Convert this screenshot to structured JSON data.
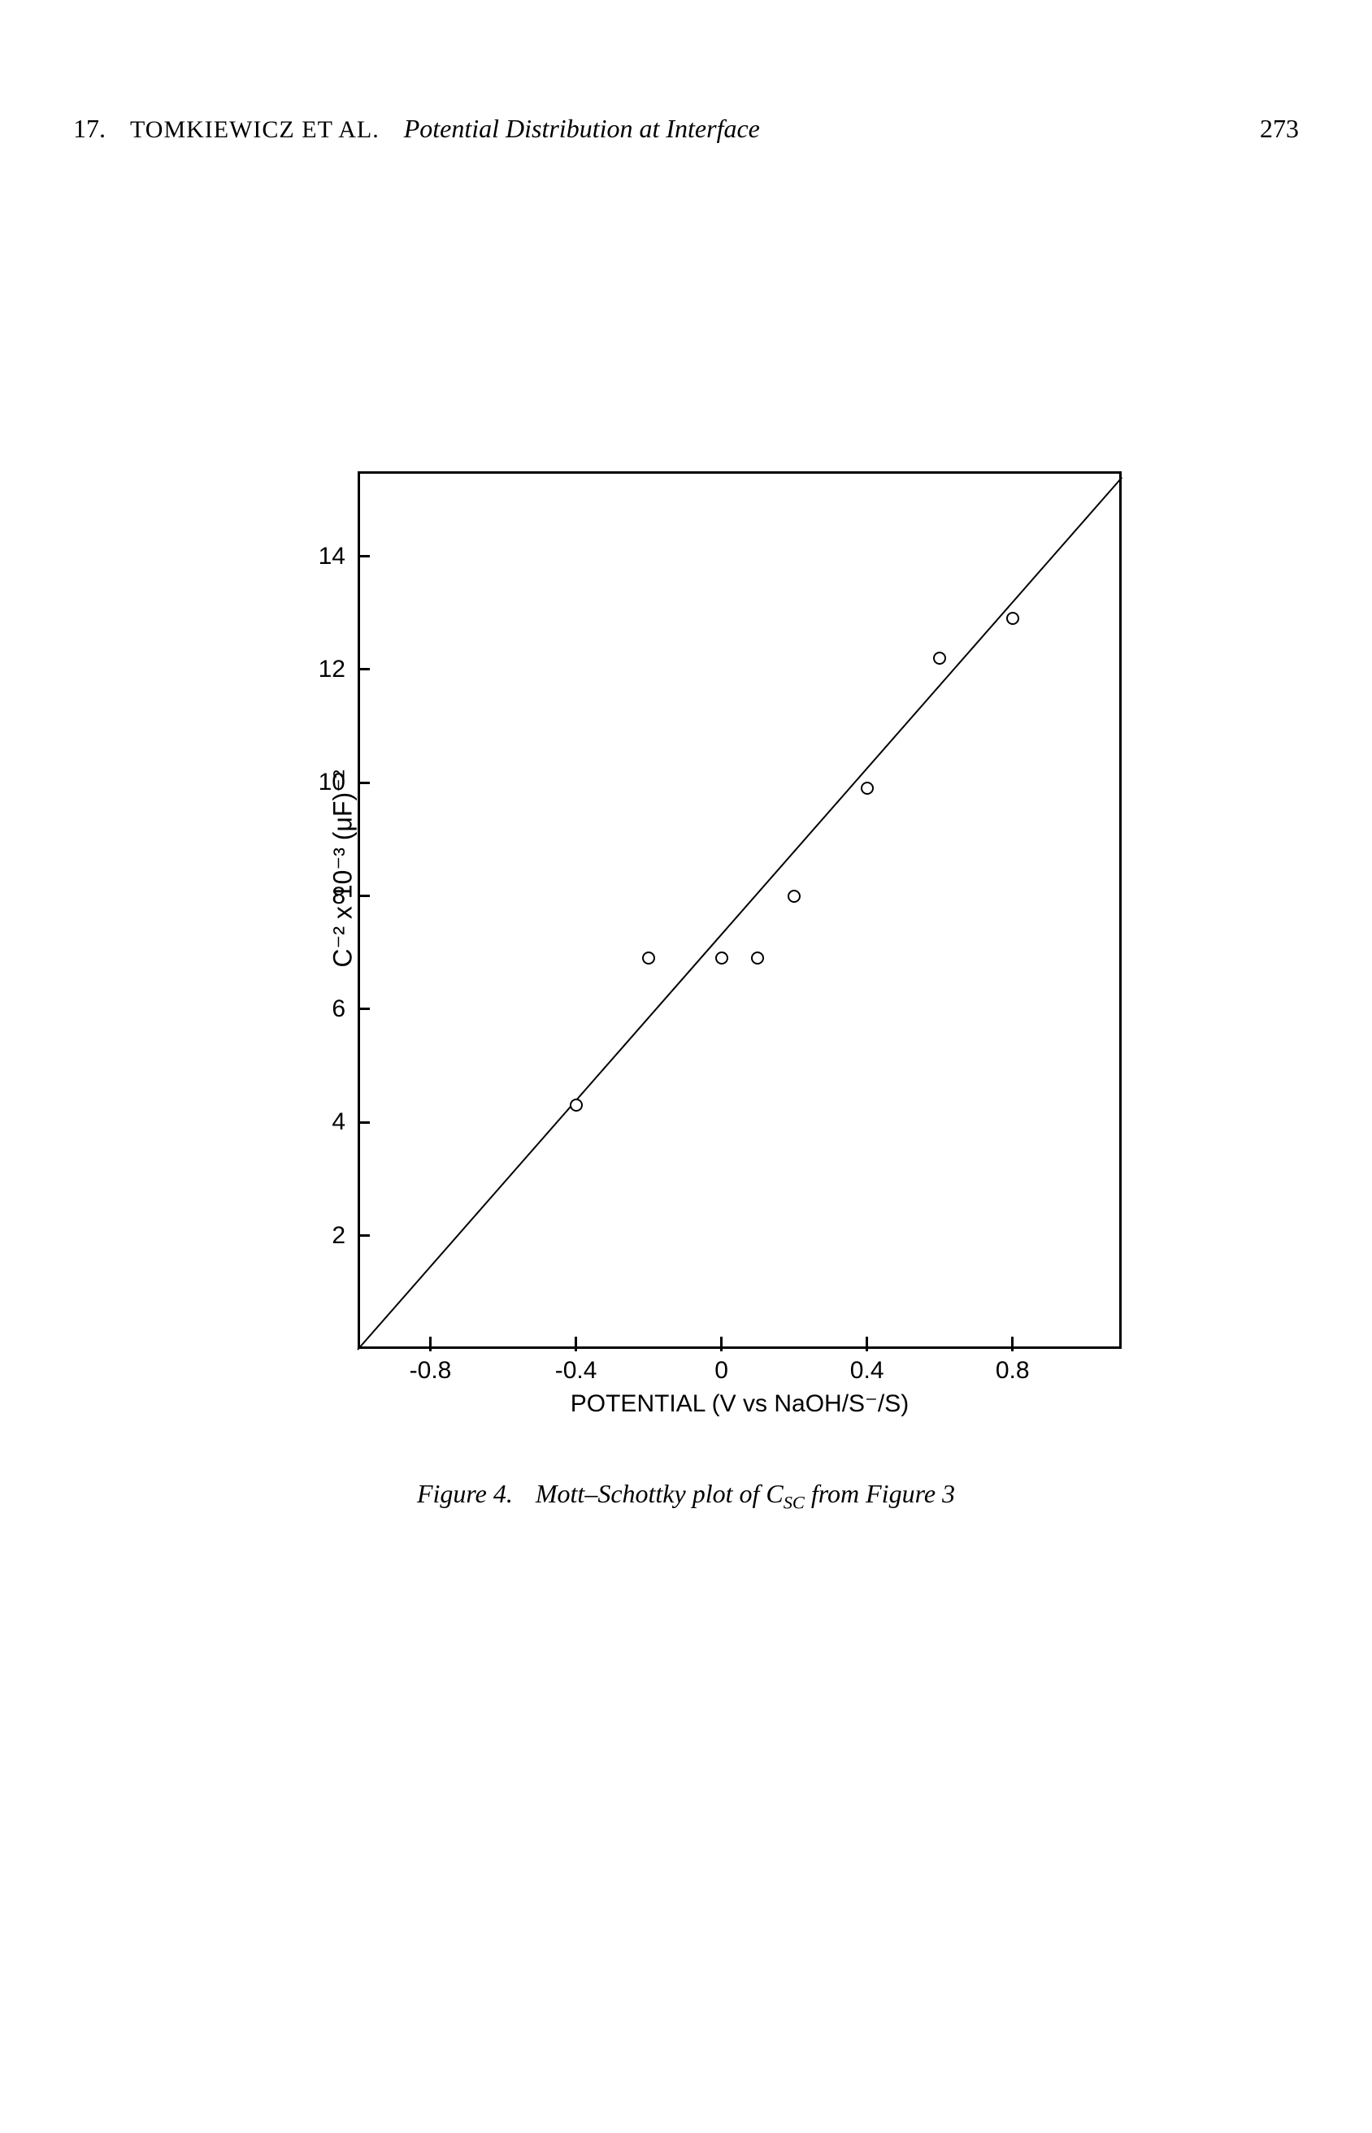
{
  "header": {
    "chapter": "17.",
    "authors": "TOMKIEWICZ ET AL.",
    "title": "Potential Distribution at Interface",
    "page": "273"
  },
  "chart": {
    "type": "scatter",
    "xlim": [
      -1.0,
      1.1
    ],
    "ylim": [
      0,
      15.5
    ],
    "y_ticks": [
      2,
      4,
      6,
      8,
      10,
      12,
      14
    ],
    "y_tick_labels": [
      "2",
      "4",
      "6",
      "8",
      "10",
      "12",
      "14"
    ],
    "x_ticks": [
      -0.8,
      -0.4,
      0,
      0.4,
      0.8
    ],
    "x_tick_labels": [
      "-0.8",
      "-0.4",
      "0",
      "0.4",
      "0.8"
    ],
    "x_axis_label": "POTENTIAL (V vs NaOH/S⁻/S)",
    "y_axis_label": "C⁻² x 10⁻³ (μF)⁻²",
    "data_points": [
      {
        "x": -0.4,
        "y": 4.3
      },
      {
        "x": -0.2,
        "y": 6.9
      },
      {
        "x": 0.0,
        "y": 6.9
      },
      {
        "x": 0.1,
        "y": 6.9
      },
      {
        "x": 0.2,
        "y": 8.0
      },
      {
        "x": 0.4,
        "y": 9.9
      },
      {
        "x": 0.6,
        "y": 12.2
      },
      {
        "x": 0.8,
        "y": 12.9
      }
    ],
    "trend_line": {
      "x1": -1.0,
      "y1": 0.0,
      "x2": 1.1,
      "y2": 15.4
    },
    "marker_color": "#000000",
    "line_color": "#000000",
    "background_color": "#ffffff",
    "border_width": 3,
    "marker_size": 16,
    "axis_fontsize": 30,
    "label_fontsize": 32
  },
  "caption": {
    "prefix": "Figure 4.",
    "text": "Mott–Schottky plot of C",
    "subscript": "SC",
    "suffix": " from Figure 3"
  }
}
